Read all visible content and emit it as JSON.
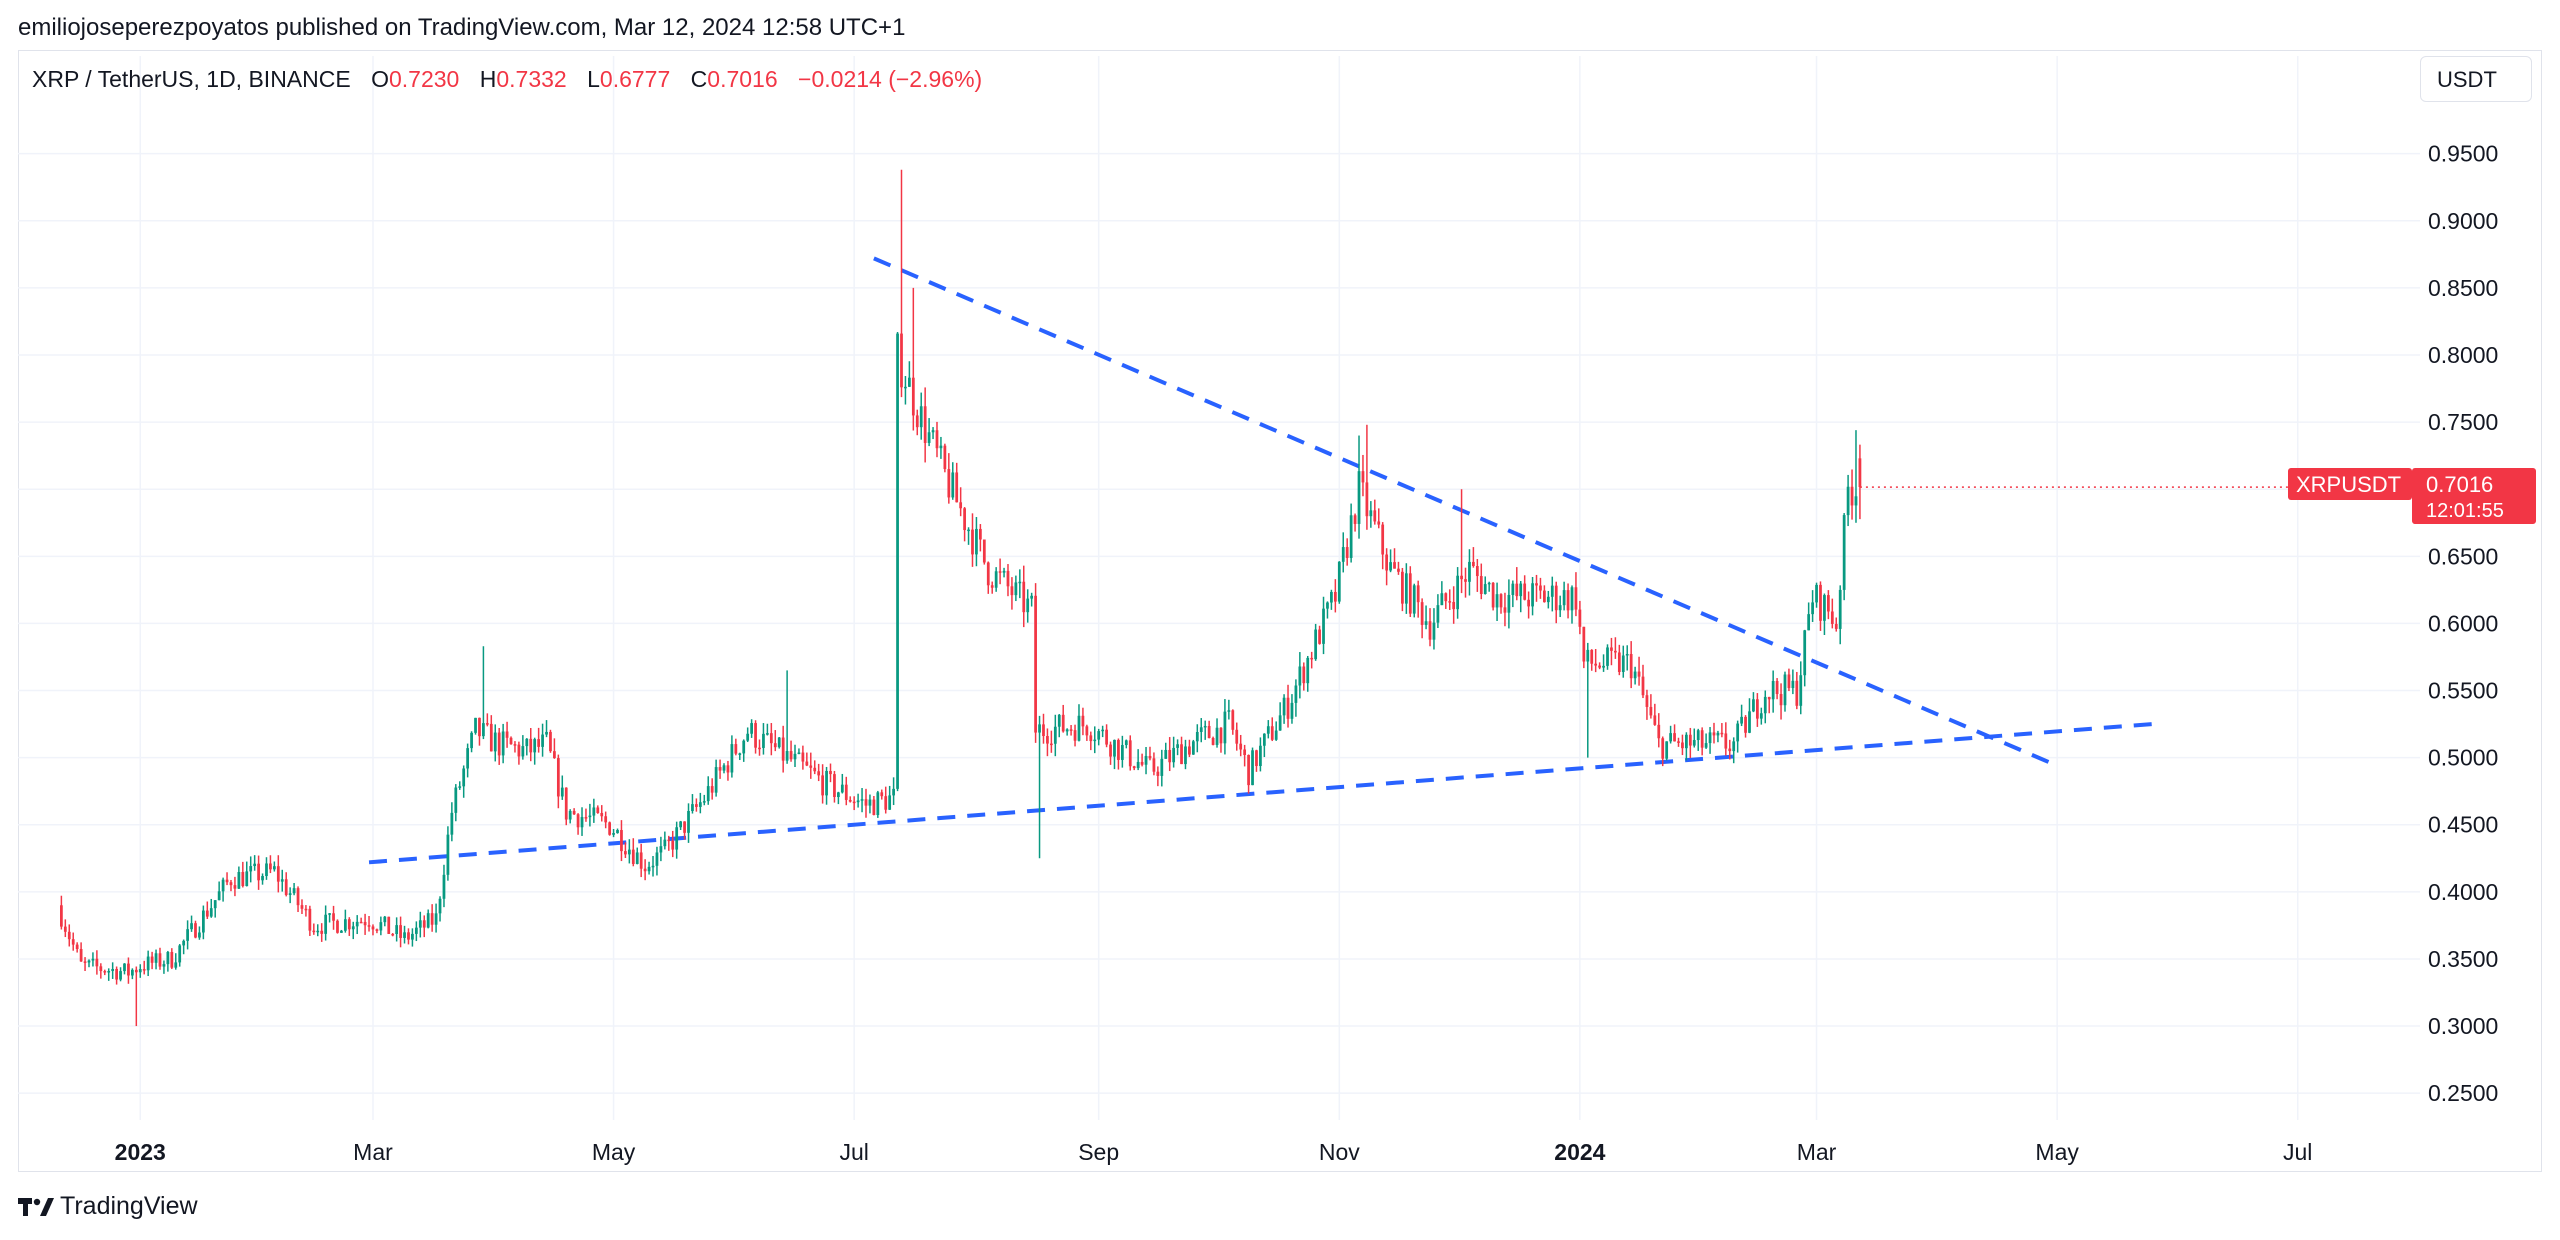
{
  "header": {
    "publisher_line": "emiliojoseperezpoyatos published on TradingView.com, Mar 12, 2024 12:58 UTC+1"
  },
  "legend": {
    "symbol": "XRP / TetherUS, 1D, BINANCE",
    "open_label": "O",
    "open": "0.7230",
    "high_label": "H",
    "high": "0.7332",
    "low_label": "L",
    "low": "0.6777",
    "close_label": "C",
    "close": "0.7016",
    "change": "−0.0214 (−2.96%)"
  },
  "currency_button": {
    "label": "USDT"
  },
  "price_tag": {
    "symbol": "XRPUSDT",
    "price": "0.7016",
    "countdown": "12:01:55"
  },
  "footer": {
    "brand": "TradingView"
  },
  "colors": {
    "up": "#089981",
    "down": "#f23645",
    "trendline": "#2962ff",
    "grid": "#f0f3fa"
  },
  "chart_data": {
    "type": "candlestick",
    "y_axis": {
      "ticks": [
        "0.2500",
        "0.3000",
        "0.3500",
        "0.4000",
        "0.4500",
        "0.5000",
        "0.5500",
        "0.6000",
        "0.6500",
        "0.7000",
        "0.7500",
        "0.8000",
        "0.8500",
        "0.9000",
        "0.9500"
      ],
      "range": [
        0.23,
        0.99
      ]
    },
    "x_axis": {
      "ticks": [
        {
          "label": "2023",
          "date": "2023-01-01",
          "bold": true
        },
        {
          "label": "Mar",
          "date": "2023-03-01"
        },
        {
          "label": "May",
          "date": "2023-05-01"
        },
        {
          "label": "Jul",
          "date": "2023-07-01"
        },
        {
          "label": "Sep",
          "date": "2023-09-01"
        },
        {
          "label": "Nov",
          "date": "2023-11-01"
        },
        {
          "label": "2024",
          "date": "2024-01-01",
          "bold": true
        },
        {
          "label": "Mar",
          "date": "2024-03-01"
        },
        {
          "label": "May",
          "date": "2024-05-01"
        },
        {
          "label": "Jul",
          "date": "2024-07-01"
        }
      ],
      "range": [
        "2022-12-01",
        "2024-08-01"
      ]
    },
    "price_anchors": [
      [
        "2022-12-12",
        0.39
      ],
      [
        "2022-12-18",
        0.345
      ],
      [
        "2022-12-30",
        0.34
      ],
      [
        "2023-01-02",
        0.345
      ],
      [
        "2023-01-10",
        0.35
      ],
      [
        "2023-01-25",
        0.41
      ],
      [
        "2023-02-05",
        0.415
      ],
      [
        "2023-02-15",
        0.375
      ],
      [
        "2023-03-01",
        0.38
      ],
      [
        "2023-03-10",
        0.365
      ],
      [
        "2023-03-18",
        0.38
      ],
      [
        "2023-03-22",
        0.46
      ],
      [
        "2023-03-28",
        0.52
      ],
      [
        "2023-04-03",
        0.51
      ],
      [
        "2023-04-10",
        0.505
      ],
      [
        "2023-04-15",
        0.51
      ],
      [
        "2023-04-20",
        0.46
      ],
      [
        "2023-05-01",
        0.45
      ],
      [
        "2023-05-10",
        0.42
      ],
      [
        "2023-05-15",
        0.43
      ],
      [
        "2023-05-25",
        0.47
      ],
      [
        "2023-06-05",
        0.52
      ],
      [
        "2023-06-15",
        0.5
      ],
      [
        "2023-06-25",
        0.48
      ],
      [
        "2023-07-05",
        0.465
      ],
      [
        "2023-07-12",
        0.47
      ],
      [
        "2023-07-13",
        0.8
      ],
      [
        "2023-07-18",
        0.76
      ],
      [
        "2023-07-25",
        0.71
      ],
      [
        "2023-08-05",
        0.64
      ],
      [
        "2023-08-16",
        0.61
      ],
      [
        "2023-08-17",
        0.52
      ],
      [
        "2023-08-30",
        0.525
      ],
      [
        "2023-09-15",
        0.49
      ],
      [
        "2023-09-25",
        0.51
      ],
      [
        "2023-10-05",
        0.525
      ],
      [
        "2023-10-10",
        0.49
      ],
      [
        "2023-10-20",
        0.54
      ],
      [
        "2023-11-01",
        0.62
      ],
      [
        "2023-11-07",
        0.7
      ],
      [
        "2023-11-15",
        0.64
      ],
      [
        "2023-11-25",
        0.6
      ],
      [
        "2023-12-05",
        0.64
      ],
      [
        "2023-12-12",
        0.62
      ],
      [
        "2023-12-25",
        0.62
      ],
      [
        "2024-01-01",
        0.62
      ],
      [
        "2024-01-03",
        0.57
      ],
      [
        "2024-01-15",
        0.57
      ],
      [
        "2024-01-22",
        0.51
      ],
      [
        "2024-02-01",
        0.51
      ],
      [
        "2024-02-10",
        0.51
      ],
      [
        "2024-02-18",
        0.55
      ],
      [
        "2024-02-26",
        0.55
      ],
      [
        "2024-03-01",
        0.62
      ],
      [
        "2024-03-05",
        0.61
      ],
      [
        "2024-03-07",
        0.6
      ],
      [
        "2024-03-10",
        0.7
      ],
      [
        "2024-03-12",
        0.7016
      ]
    ],
    "volatility": 0.022,
    "spikes": [
      {
        "date": "2022-12-31",
        "low": 0.3
      },
      {
        "date": "2023-03-29",
        "high": 0.583
      },
      {
        "date": "2023-06-14",
        "high": 0.565
      },
      {
        "date": "2023-07-13",
        "high": 0.938
      },
      {
        "date": "2023-07-16",
        "high": 0.85
      },
      {
        "date": "2023-08-17",
        "low": 0.425
      },
      {
        "date": "2023-11-06",
        "high": 0.74
      },
      {
        "date": "2023-11-08",
        "high": 0.748
      },
      {
        "date": "2023-12-02",
        "high": 0.7
      },
      {
        "date": "2024-01-03",
        "low": 0.5
      },
      {
        "date": "2024-03-11",
        "high": 0.744
      }
    ],
    "last_candle": {
      "date": "2024-03-12",
      "open": 0.723,
      "high": 0.7332,
      "low": 0.6777,
      "close": 0.7016
    },
    "trendlines": [
      {
        "name": "descending-resistance",
        "from": {
          "date": "2023-07-06",
          "price": 0.872
        },
        "to": {
          "date": "2024-05-01",
          "price": 0.494
        }
      },
      {
        "name": "ascending-support",
        "from": {
          "date": "2023-02-28",
          "price": 0.422
        },
        "to": {
          "date": "2024-05-25",
          "price": 0.525
        }
      }
    ]
  }
}
